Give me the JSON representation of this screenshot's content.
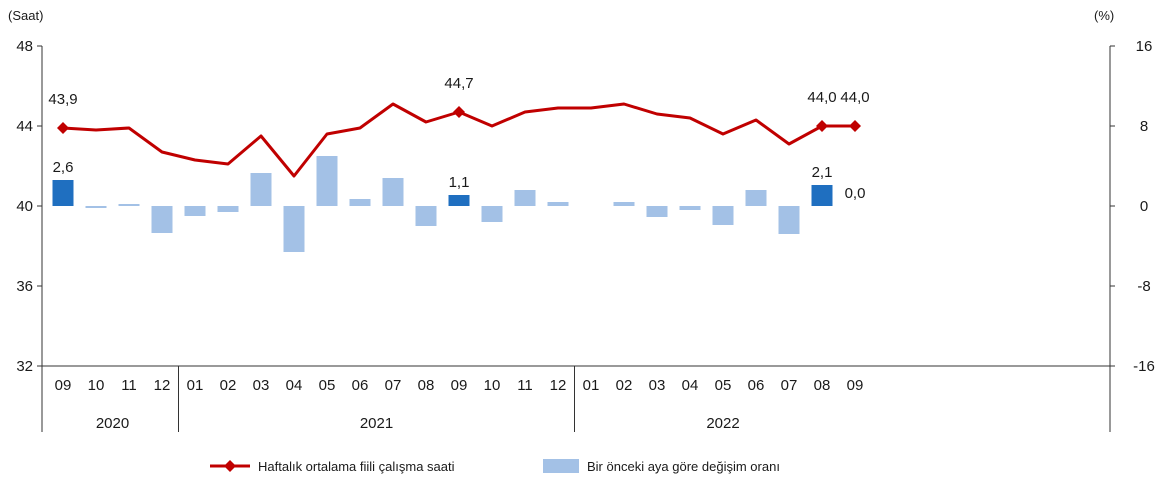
{
  "chart_data": {
    "type": "bar+line",
    "left_axis": {
      "unit": "(Saat)",
      "ylim": [
        32,
        48
      ],
      "ticks": [
        32,
        36,
        40,
        44,
        48
      ]
    },
    "right_axis": {
      "unit": "(%)",
      "ylim": [
        -16,
        16
      ],
      "ticks": [
        -16,
        -8,
        0,
        8,
        16
      ]
    },
    "months": [
      "09",
      "10",
      "11",
      "12",
      "01",
      "02",
      "03",
      "04",
      "05",
      "06",
      "07",
      "08",
      "09",
      "10",
      "11",
      "12",
      "01",
      "02",
      "03",
      "04",
      "05",
      "06",
      "07",
      "08",
      "09"
    ],
    "years": [
      {
        "label": "2020",
        "start": 0,
        "end": 3
      },
      {
        "label": "2021",
        "start": 4,
        "end": 15
      },
      {
        "label": "2022",
        "start": 16,
        "end": 24
      }
    ],
    "series": [
      {
        "name": "Haftalık ortalama fiili çalışma saati",
        "kind": "line",
        "axis": "left",
        "color": "#c00000",
        "values": [
          43.9,
          43.8,
          43.9,
          42.7,
          42.3,
          42.1,
          43.5,
          41.5,
          43.6,
          43.9,
          45.1,
          44.2,
          44.7,
          44.0,
          44.7,
          44.9,
          44.9,
          45.1,
          44.6,
          44.4,
          43.6,
          44.3,
          43.1,
          44.0,
          44.0
        ]
      },
      {
        "name": "Bir önceki aya göre değişim oranı",
        "kind": "bar",
        "axis": "right",
        "color": "#a3c1e6",
        "highlight_color": "#1f6fc0",
        "values": [
          2.6,
          -0.2,
          0.2,
          -2.7,
          -1.0,
          -0.6,
          3.3,
          -4.6,
          5.0,
          0.7,
          2.8,
          -2.0,
          1.1,
          -1.6,
          1.6,
          0.4,
          0.0,
          0.4,
          -1.1,
          -0.4,
          -1.9,
          1.6,
          -2.8,
          2.1,
          0.0
        ],
        "highlight_indices": [
          0,
          12,
          23,
          24
        ]
      }
    ],
    "line_labels": [
      {
        "index": 0,
        "text": "43,9"
      },
      {
        "index": 12,
        "text": "44,7"
      },
      {
        "index": 23,
        "text": "44,0"
      },
      {
        "index": 24,
        "text": "44,0"
      }
    ],
    "bar_labels": [
      {
        "index": 0,
        "text": "2,6"
      },
      {
        "index": 12,
        "text": "1,1"
      },
      {
        "index": 23,
        "text": "2,1"
      },
      {
        "index": 24,
        "text": "0,0"
      }
    ],
    "legend": {
      "placement": "bottom-center"
    }
  }
}
